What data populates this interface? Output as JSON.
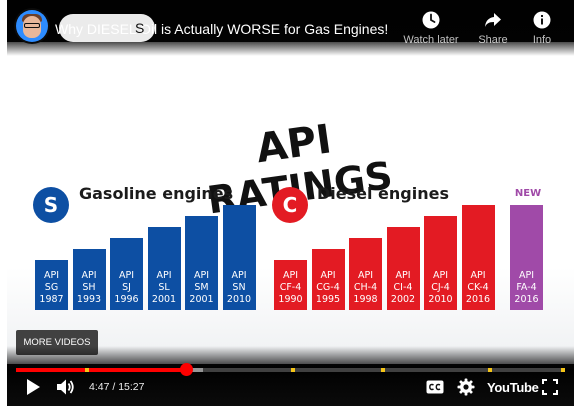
{
  "video": {
    "title": "Why DIESEL Oil is Actually WORSE for Gas Engines!",
    "title_tooltip_fragment": "S",
    "avatar_icon": "channel-avatar"
  },
  "top_actions": [
    {
      "id": "watch-later",
      "label": "Watch later",
      "icon": "clock-icon"
    },
    {
      "id": "share",
      "label": "Share",
      "icon": "share-arrow-icon"
    },
    {
      "id": "info",
      "label": "Info",
      "icon": "info-icon"
    }
  ],
  "slide": {
    "heading_line1": "API",
    "heading_line2": "RATINGS",
    "gasoline": {
      "badge": "S",
      "heading": "Gasoline engines",
      "color": "#0d4fa3",
      "bars": [
        {
          "api": "API",
          "code": "SG",
          "year": "1987",
          "level": 1
        },
        {
          "api": "API",
          "code": "SH",
          "year": "1993",
          "level": 2
        },
        {
          "api": "API",
          "code": "SJ",
          "year": "1996",
          "level": 3
        },
        {
          "api": "API",
          "code": "SL",
          "year": "2001",
          "level": 4
        },
        {
          "api": "API",
          "code": "SM",
          "year": "2001",
          "level": 5
        },
        {
          "api": "API",
          "code": "SN",
          "year": "2010",
          "level": 6
        }
      ]
    },
    "diesel": {
      "badge": "C",
      "heading": "Diesel engines",
      "color": "#e31b23",
      "bars": [
        {
          "api": "API",
          "code": "CF-4",
          "year": "1990",
          "level": 1
        },
        {
          "api": "API",
          "code": "CG-4",
          "year": "1995",
          "level": 2
        },
        {
          "api": "API",
          "code": "CH-4",
          "year": "1998",
          "level": 3
        },
        {
          "api": "API",
          "code": "CI-4",
          "year": "2002",
          "level": 4
        },
        {
          "api": "API",
          "code": "CJ-4",
          "year": "2010",
          "level": 5
        },
        {
          "api": "API",
          "code": "CK-4",
          "year": "2016",
          "level": 6
        }
      ]
    },
    "new_category": {
      "tag": "NEW",
      "color": "#a04aa8",
      "bar": {
        "api": "API",
        "code": "FA-4",
        "year": "2016",
        "level": 6
      }
    }
  },
  "more_videos_label": "MORE VIDEOS",
  "player": {
    "current_time": "4:47",
    "duration": "15:27",
    "time_text": "4:47 / 15:27",
    "played_fraction": 0.31,
    "loaded_fraction": 0.34,
    "chapter_marker_fractions": [
      0.125,
      0.5,
      0.665,
      0.86,
      0.995
    ],
    "accent_color": "#ff0000",
    "brand": "YouTube",
    "control_icons": [
      "play-icon",
      "volume-icon",
      "captions-icon",
      "settings-gear-icon",
      "youtube-logo",
      "fullscreen-icon"
    ]
  }
}
